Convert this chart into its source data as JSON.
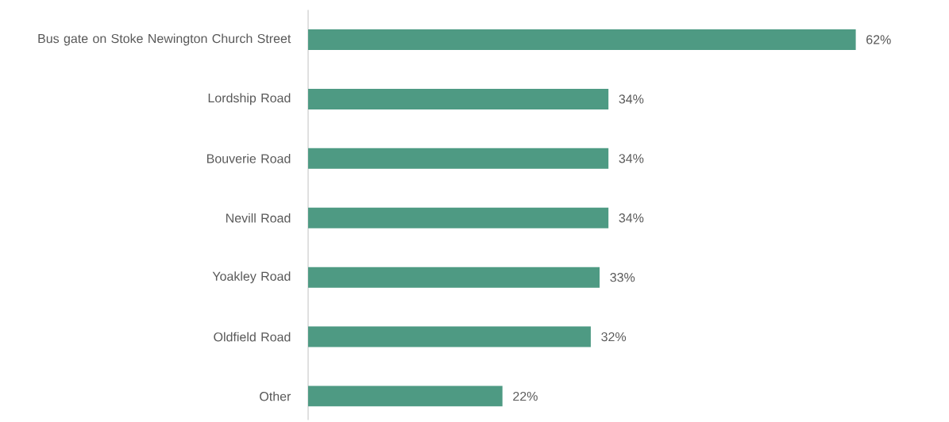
{
  "chart_data": {
    "type": "bar",
    "orientation": "horizontal",
    "categories": [
      "Bus gate on Stoke Newington Church Street",
      "Lordship Road",
      "Bouverie Road",
      "Nevill Road",
      "Yoakley Road",
      "Oldfield Road",
      "Other"
    ],
    "values": [
      62,
      34,
      34,
      34,
      33,
      32,
      22
    ],
    "value_labels": [
      "62%",
      "34%",
      "34%",
      "34%",
      "33%",
      "32%",
      "22%"
    ],
    "color": "#4e9a83"
  }
}
